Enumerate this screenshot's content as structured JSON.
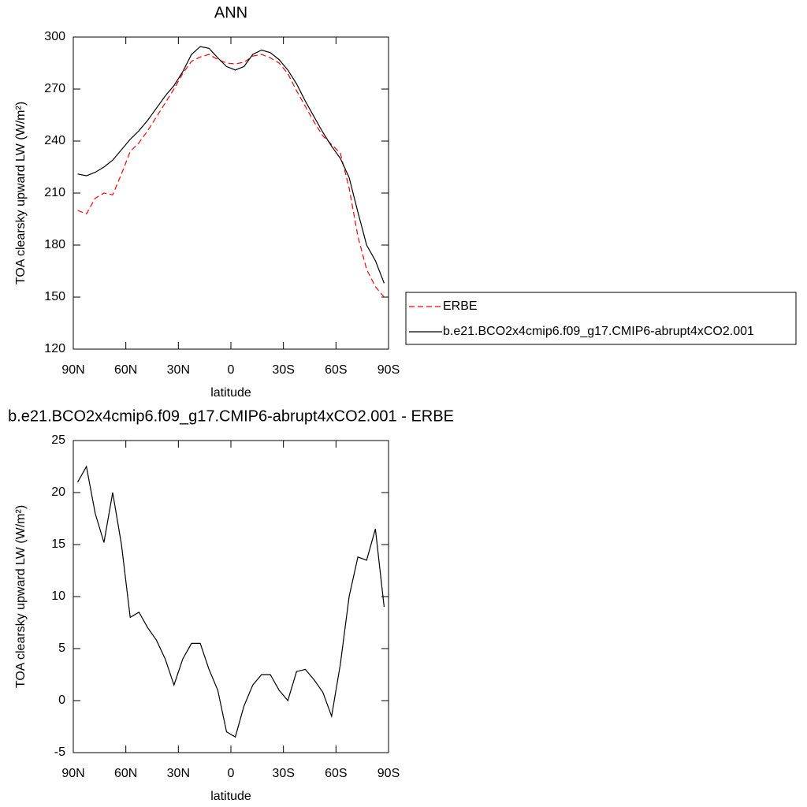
{
  "chart_data": [
    {
      "type": "line",
      "title": "ANN",
      "x_label": "latitude",
      "y_label": "TOA clearsky upward LW (W/m²)",
      "x": [
        87.5,
        82.5,
        77.5,
        72.5,
        67.5,
        62.5,
        57.5,
        52.5,
        47.5,
        42.5,
        37.5,
        32.5,
        27.5,
        22.5,
        17.5,
        12.5,
        7.5,
        2.5,
        -2.5,
        -7.5,
        -12.5,
        -17.5,
        -22.5,
        -27.5,
        -32.5,
        -37.5,
        -42.5,
        -47.5,
        -52.5,
        -57.5,
        -62.5,
        -67.5,
        -72.5,
        -77.5,
        -82.5,
        -87.5
      ],
      "xlim": [
        90,
        -90
      ],
      "xticks": [
        {
          "value": 90,
          "label": "90N"
        },
        {
          "value": 60,
          "label": "60N"
        },
        {
          "value": 30,
          "label": "30N"
        },
        0,
        {
          "value": -30,
          "label": "30S"
        },
        {
          "value": -60,
          "label": "60S"
        },
        {
          "value": -90,
          "label": "90S"
        }
      ],
      "ylim": [
        120,
        300
      ],
      "yticks": [
        120,
        150,
        180,
        210,
        240,
        270,
        300
      ],
      "legend": "right",
      "series": [
        {
          "name": "ERBE",
          "color": "#ff0000",
          "line_style": "dashed",
          "values": [
            200,
            198,
            207,
            210,
            209,
            221,
            234,
            239,
            246,
            254,
            262,
            270,
            279,
            286,
            288.5,
            290,
            287,
            285,
            284.5,
            285.5,
            289,
            290,
            288,
            285,
            279,
            269,
            260,
            251,
            243,
            238,
            233,
            213,
            185,
            166,
            156,
            150
          ]
        },
        {
          "name": "b.e21.BCO2x4cmip6.f09_g17.CMIP6-abrupt4xCO2.001",
          "color": "#000000",
          "line_style": "solid",
          "values": [
            221,
            220,
            222,
            225,
            229,
            235,
            241,
            246,
            252,
            259,
            266,
            272,
            280,
            290,
            294.5,
            293.5,
            288,
            283,
            281,
            283,
            290,
            292.5,
            291,
            287,
            281,
            273,
            263,
            254,
            245,
            237,
            230,
            219,
            199,
            180,
            171,
            158
          ]
        }
      ]
    },
    {
      "type": "line",
      "title": "b.e21.BCO2x4cmip6.f09_g17.CMIP6-abrupt4xCO2.001 - ERBE",
      "x_label": "latitude",
      "y_label": "TOA clearsky upward LW (W/m²)",
      "x": [
        87.5,
        82.5,
        77.5,
        72.5,
        67.5,
        62.5,
        57.5,
        52.5,
        47.5,
        42.5,
        37.5,
        32.5,
        27.5,
        22.5,
        17.5,
        12.5,
        7.5,
        2.5,
        -2.5,
        -7.5,
        -12.5,
        -17.5,
        -22.5,
        -27.5,
        -32.5,
        -37.5,
        -42.5,
        -47.5,
        -52.5,
        -57.5,
        -62.5,
        -67.5,
        -72.5,
        -77.5,
        -82.5,
        -87.5
      ],
      "xlim": [
        90,
        -90
      ],
      "xticks": [
        {
          "value": 90,
          "label": "90N"
        },
        {
          "value": 60,
          "label": "60N"
        },
        {
          "value": 30,
          "label": "30N"
        },
        0,
        {
          "value": -30,
          "label": "30S"
        },
        {
          "value": -60,
          "label": "60S"
        },
        {
          "value": -90,
          "label": "90S"
        }
      ],
      "ylim": [
        -5,
        25
      ],
      "yticks": [
        -5,
        0,
        5,
        10,
        15,
        20,
        25
      ],
      "color": "#000000",
      "values": [
        21,
        22.5,
        18,
        15.2,
        20,
        15,
        8,
        8.5,
        7,
        5.8,
        4,
        1.5,
        4,
        5.5,
        5.5,
        3,
        1,
        -3,
        -3.5,
        -0.5,
        1.5,
        2.5,
        2.5,
        1,
        0,
        2.8,
        3,
        2,
        0.8,
        -1.5,
        3.5,
        10,
        13.8,
        13.5,
        16.5,
        9
      ]
    }
  ]
}
